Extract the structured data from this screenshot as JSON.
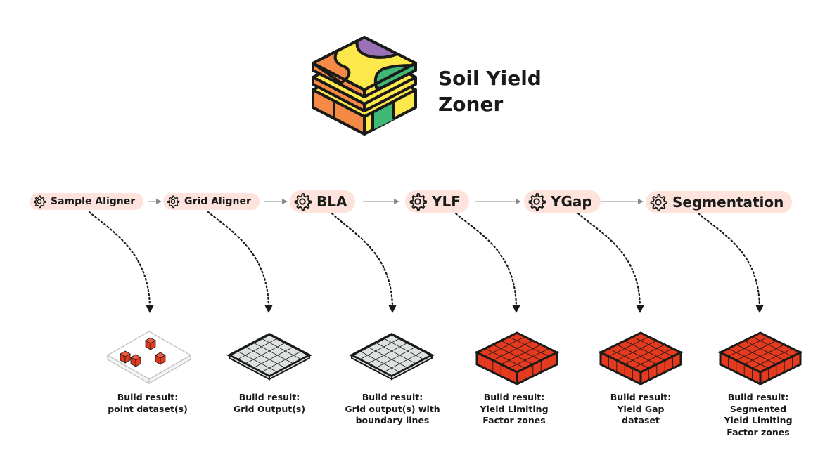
{
  "title": {
    "line1": "Soil Yield",
    "line2": "Zoner"
  },
  "steps": [
    {
      "label": "Sample Aligner"
    },
    {
      "label": "Grid Aligner"
    },
    {
      "label": "BLA"
    },
    {
      "label": "YLF"
    },
    {
      "label": "YGap"
    },
    {
      "label": "Segmentation"
    }
  ],
  "results": [
    {
      "line1": "Build result:",
      "line2": "point dataset(s)",
      "line3": "",
      "line4": "",
      "icon": "sparse-points-tile"
    },
    {
      "line1": "Build result:",
      "line2": "Grid Output(s)",
      "line3": "",
      "line4": "",
      "icon": "grey-grid-tile"
    },
    {
      "line1": "Build result:",
      "line2": "Grid output(s) with",
      "line3": "boundary lines",
      "line4": "",
      "icon": "grey-grid-tile"
    },
    {
      "line1": "Build result:",
      "line2": "Yield Limiting",
      "line3": "Factor zones",
      "line4": "",
      "icon": "red-grid-block"
    },
    {
      "line1": "Build result:",
      "line2": "Yield Gap",
      "line3": "dataset",
      "line4": "",
      "icon": "red-grid-block"
    },
    {
      "line1": "Build result:",
      "line2": "Segmented",
      "line3": "Yield Limiting",
      "line4": "Factor zones",
      "icon": "red-grid-block"
    }
  ],
  "colors": {
    "pill": "#fde3dc",
    "red": "#e63a1e",
    "grid_grey": "#dde1e0",
    "logo_orange": "#f48a45",
    "logo_yellow": "#fce84a",
    "logo_green": "#3fb876",
    "logo_purple": "#9b72b8"
  }
}
